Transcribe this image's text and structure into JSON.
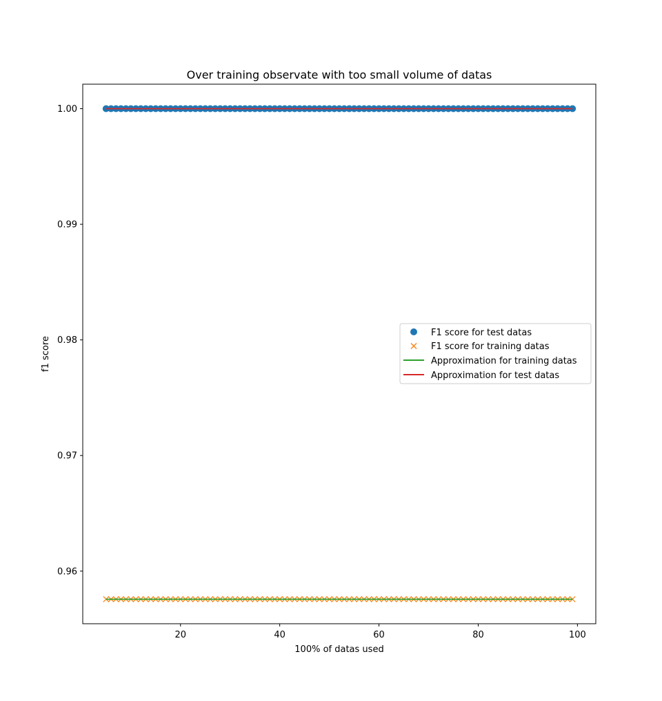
{
  "chart_data": {
    "type": "scatter",
    "title": "Over training observate with too small volume of datas",
    "xlabel": "100% of datas used",
    "ylabel": "f1 score",
    "xlim": [
      0.3,
      103.7
    ],
    "ylim": [
      0.95545,
      1.00212
    ],
    "xticks": [
      20,
      40,
      60,
      80,
      100
    ],
    "xtick_labels": [
      "20",
      "40",
      "60",
      "80",
      "100"
    ],
    "yticks": [
      0.96,
      0.97,
      0.98,
      0.99,
      1.0
    ],
    "ytick_labels": [
      "0.96",
      "0.97",
      "0.98",
      "0.99",
      "1.00"
    ],
    "grid": false,
    "legend_position": "center-right",
    "x_start": 5,
    "x_end": 99,
    "x_step": 1,
    "series": [
      {
        "name": "F1 score for test datas",
        "kind": "points",
        "marker": "circle",
        "color": "#1f77b4",
        "y": 1.0
      },
      {
        "name": "F1 score for training datas",
        "kind": "points",
        "marker": "x",
        "color": "#ff7f0e",
        "y": 0.95757
      },
      {
        "name": "Approximation for training datas",
        "kind": "line",
        "color": "#2ca02c",
        "y": 0.95757
      },
      {
        "name": "Approximation for test datas",
        "kind": "line",
        "color": "#d62728",
        "y": 1.0
      }
    ]
  }
}
